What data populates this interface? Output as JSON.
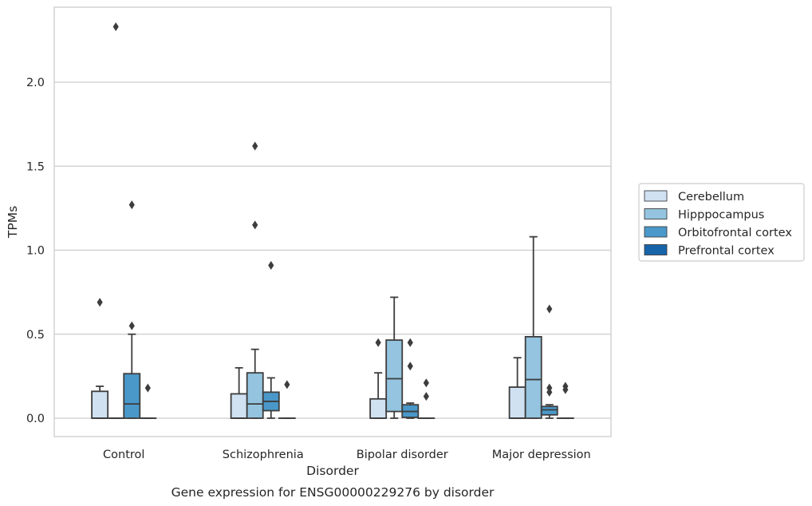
{
  "chart_data": {
    "type": "box",
    "title": "",
    "caption": "Gene expression for ENSG00000229276 by disorder",
    "xlabel": "Disorder",
    "ylabel": "TPMs",
    "ylim": [
      -0.11,
      2.45
    ],
    "yticks": [
      "0.0",
      "0.5",
      "1.0",
      "1.5",
      "2.0"
    ],
    "ytick_values": [
      0.0,
      0.5,
      1.0,
      1.5,
      2.0
    ],
    "grid": "horizontal",
    "legend_position": "right",
    "categories": [
      "Control",
      "Schizophrenia",
      "Bipolar disorder",
      "Major depression"
    ],
    "series": [
      {
        "name": "Cerebellum",
        "color": "#d0e1f2",
        "boxes": [
          {
            "q1": 0.0,
            "median": 0.0,
            "q3": 0.16,
            "whislo": 0.0,
            "whishi": 0.19,
            "fliers": [
              0.69
            ]
          },
          {
            "q1": 0.0,
            "median": 0.0,
            "q3": 0.145,
            "whislo": 0.0,
            "whishi": 0.3,
            "fliers": []
          },
          {
            "q1": 0.0,
            "median": 0.0,
            "q3": 0.115,
            "whislo": 0.0,
            "whishi": 0.27,
            "fliers": [
              0.45
            ]
          },
          {
            "q1": 0.0,
            "median": 0.0,
            "q3": 0.185,
            "whislo": 0.0,
            "whishi": 0.36,
            "fliers": []
          }
        ]
      },
      {
        "name": "Hipppocampus",
        "color": "#94c4df",
        "boxes": [
          {
            "q1": 0.0,
            "median": 0.0,
            "q3": 0.0,
            "whislo": 0.0,
            "whishi": 0.0,
            "fliers": [
              2.33
            ]
          },
          {
            "q1": 0.0,
            "median": 0.085,
            "q3": 0.27,
            "whislo": 0.0,
            "whishi": 0.41,
            "fliers": [
              1.62,
              1.15
            ]
          },
          {
            "q1": 0.04,
            "median": 0.235,
            "q3": 0.465,
            "whislo": 0.0,
            "whishi": 0.72,
            "fliers": []
          },
          {
            "q1": 0.0,
            "median": 0.23,
            "q3": 0.485,
            "whislo": 0.0,
            "whishi": 1.08,
            "fliers": []
          }
        ]
      },
      {
        "name": "Orbitofrontal cortex",
        "color": "#4a98c9",
        "boxes": [
          {
            "q1": 0.0,
            "median": 0.085,
            "q3": 0.265,
            "whislo": 0.0,
            "whishi": 0.5,
            "fliers": [
              1.27,
              0.55
            ]
          },
          {
            "q1": 0.045,
            "median": 0.1,
            "q3": 0.155,
            "whislo": 0.0,
            "whishi": 0.24,
            "fliers": [
              0.91
            ]
          },
          {
            "q1": 0.005,
            "median": 0.04,
            "q3": 0.08,
            "whislo": 0.0,
            "whishi": 0.09,
            "fliers": [
              0.45,
              0.31
            ]
          },
          {
            "q1": 0.02,
            "median": 0.05,
            "q3": 0.07,
            "whislo": 0.0,
            "whishi": 0.08,
            "fliers": [
              0.65,
              0.18,
              0.155
            ]
          }
        ]
      },
      {
        "name": "Prefrontal cortex",
        "color": "#1764ab",
        "boxes": [
          {
            "q1": 0.0,
            "median": 0.0,
            "q3": 0.0,
            "whislo": 0.0,
            "whishi": 0.0,
            "fliers": [
              0.18
            ]
          },
          {
            "q1": 0.0,
            "median": 0.0,
            "q3": 0.0,
            "whislo": 0.0,
            "whishi": 0.0,
            "fliers": [
              0.2
            ]
          },
          {
            "q1": 0.0,
            "median": 0.0,
            "q3": 0.0,
            "whislo": 0.0,
            "whishi": 0.0,
            "fliers": [
              0.21,
              0.13
            ]
          },
          {
            "q1": 0.0,
            "median": 0.0,
            "q3": 0.0,
            "whislo": 0.0,
            "whishi": 0.0,
            "fliers": [
              0.19,
              0.17
            ]
          }
        ]
      }
    ]
  }
}
